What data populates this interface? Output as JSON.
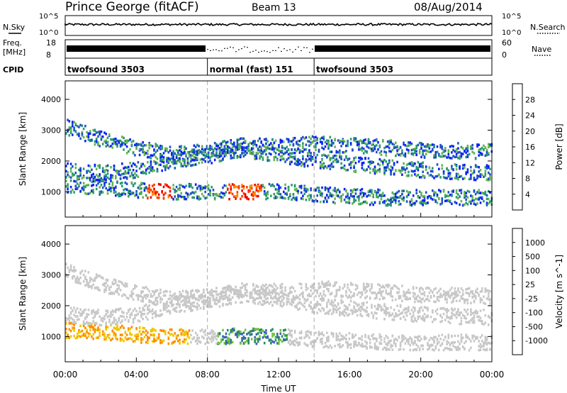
{
  "header": {
    "station": "Prince George (fitACF)",
    "beam": "Beam 13",
    "date": "08/Aug/2014"
  },
  "top_panels": {
    "nsky_label": "N.Sky",
    "nsearch_label": "N.Search",
    "nsky_ticks": [
      "10^5",
      "10^0"
    ],
    "nsearch_ticks": [
      "10^5",
      "10^0"
    ],
    "freq_label_1": "Freq.",
    "freq_label_2": "[MHz]",
    "freq_ticks": [
      "18",
      "8"
    ],
    "nave_label": "Nave",
    "nave_ticks": [
      "60",
      "0"
    ],
    "cpid_label": "CPID",
    "cpid_segments": [
      {
        "label": "twofsound 3503",
        "start_hour": 0,
        "end_hour": 8
      },
      {
        "label": "normal (fast) 151",
        "start_hour": 8,
        "end_hour": 14
      },
      {
        "label": "twofsound 3503",
        "start_hour": 14,
        "end_hour": 24
      }
    ]
  },
  "chart_data": [
    {
      "type": "heatmap",
      "title": "",
      "xlabel": "",
      "ylabel": "Slant Range [km]",
      "xlim": [
        0,
        24
      ],
      "ylim": [
        180,
        4600
      ],
      "yticks": [
        "1000",
        "2000",
        "3000",
        "4000"
      ],
      "colorbar_label": "Power [dB]",
      "colorbar_ticks": [
        "4",
        "8",
        "12",
        "16",
        "20",
        "24",
        "28"
      ],
      "colorbar_colors": [
        "#0a20ff",
        "#1e50c8",
        "#2a9a6e",
        "#64b450",
        "#f0c800",
        "#ff8c00",
        "#ff3c00",
        "#e80000"
      ],
      "echo_bands": [
        {
          "name": "low",
          "points": [
            [
              0,
              1200
            ],
            [
              2,
              1150
            ],
            [
              4,
              1050
            ],
            [
              5.5,
              1000
            ],
            [
              8,
              1000
            ],
            [
              10,
              1000
            ],
            [
              12,
              1000
            ],
            [
              14,
              900
            ],
            [
              18,
              800
            ],
            [
              24,
              800
            ]
          ]
        },
        {
          "name": "mid",
          "points": [
            [
              0,
              1700
            ],
            [
              2,
              1600
            ],
            [
              4,
              1700
            ],
            [
              6,
              2000
            ],
            [
              8,
              2150
            ],
            [
              10,
              2350
            ],
            [
              12,
              2200
            ],
            [
              14,
              2000
            ],
            [
              16,
              1900
            ],
            [
              20,
              1700
            ],
            [
              24,
              1600
            ]
          ]
        },
        {
          "name": "upper",
          "points": [
            [
              0,
              3100
            ],
            [
              2,
              2700
            ],
            [
              4,
              2400
            ],
            [
              6,
              2200
            ],
            [
              8,
              2300
            ],
            [
              10,
              2500
            ],
            [
              12,
              2450
            ],
            [
              14,
              2550
            ],
            [
              16,
              2500
            ],
            [
              20,
              2350
            ],
            [
              24,
              2300
            ]
          ]
        }
      ]
    },
    {
      "type": "heatmap",
      "title": "",
      "xlabel": "Time UT",
      "ylabel": "Slant Range [km]",
      "xlim": [
        0,
        24
      ],
      "ylim": [
        180,
        4600
      ],
      "xticks": [
        "00:00",
        "04:00",
        "08:00",
        "12:00",
        "16:00",
        "20:00",
        "00:00"
      ],
      "yticks": [
        "1000",
        "2000",
        "3000",
        "4000"
      ],
      "colorbar_label": "Velocity [m s^-1]",
      "colorbar_ticks": [
        "1000",
        "500",
        "100",
        "25",
        "-25",
        "-100",
        "-500",
        "-1000"
      ],
      "colorbar_colors": [
        "#1e3cc8",
        "#3c64b4",
        "#2a8a5e",
        "#6cc83c",
        "#c8c8c8",
        "#f0c800",
        "#ff8c00",
        "#ff4600",
        "#e80000"
      ],
      "echo_bands": [
        {
          "name": "low",
          "points": [
            [
              0,
              1200
            ],
            [
              2,
              1150
            ],
            [
              4,
              1050
            ],
            [
              5.5,
              1000
            ],
            [
              8,
              1000
            ],
            [
              10,
              1000
            ],
            [
              12,
              1000
            ],
            [
              14,
              900
            ],
            [
              18,
              800
            ],
            [
              24,
              800
            ]
          ]
        },
        {
          "name": "mid",
          "points": [
            [
              0,
              1700
            ],
            [
              2,
              1600
            ],
            [
              4,
              1700
            ],
            [
              6,
              2000
            ],
            [
              8,
              2150
            ],
            [
              10,
              2350
            ],
            [
              12,
              2200
            ],
            [
              14,
              2000
            ],
            [
              16,
              1900
            ],
            [
              20,
              1700
            ],
            [
              24,
              1600
            ]
          ]
        },
        {
          "name": "upper",
          "points": [
            [
              0,
              3100
            ],
            [
              2,
              2700
            ],
            [
              4,
              2400
            ],
            [
              6,
              2200
            ],
            [
              8,
              2300
            ],
            [
              10,
              2500
            ],
            [
              12,
              2450
            ],
            [
              14,
              2550
            ],
            [
              16,
              2500
            ],
            [
              20,
              2350
            ],
            [
              24,
              2300
            ]
          ]
        }
      ]
    }
  ]
}
